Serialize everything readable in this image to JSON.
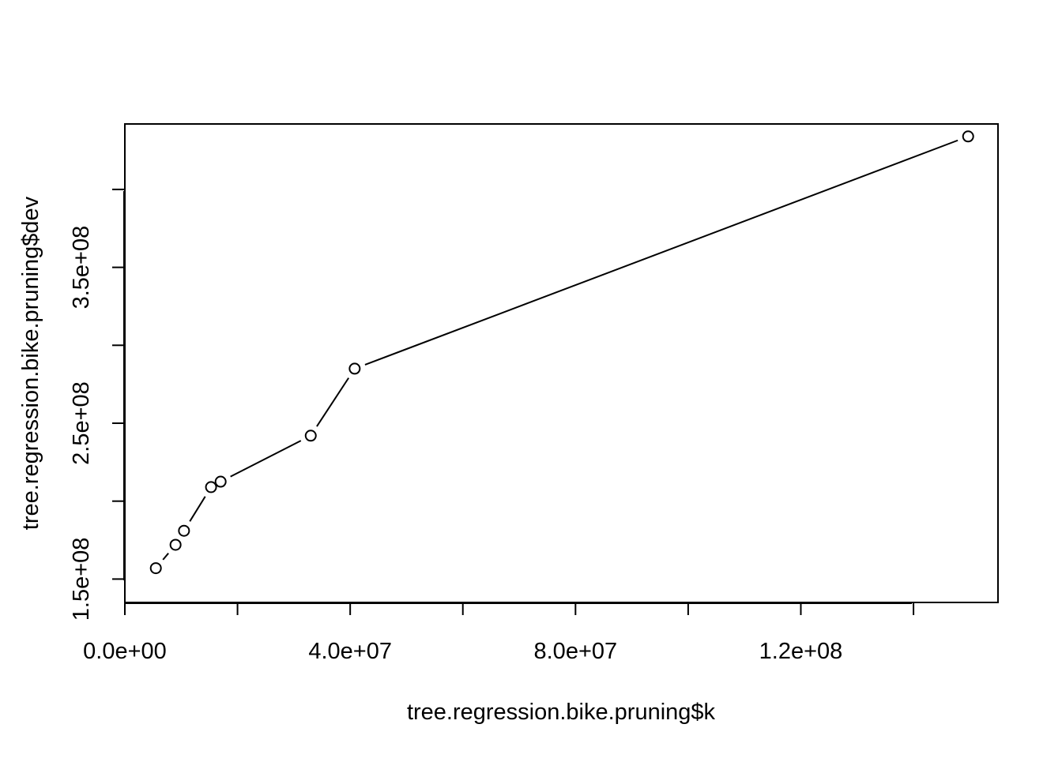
{
  "chart_data": {
    "type": "line",
    "title": "",
    "xlabel": "tree.regression.bike.pruning$k",
    "ylabel": "tree.regression.bike.pruning$dev",
    "xlim": [
      0,
      155000000
    ],
    "ylim": [
      135000000,
      442000000
    ],
    "x_ticks": [
      0,
      20000000,
      40000000,
      60000000,
      80000000,
      100000000,
      120000000,
      140000000
    ],
    "x_tick_labels": [
      "0.0e+00",
      "",
      "4.0e+07",
      "",
      "8.0e+07",
      "",
      "1.2e+08",
      ""
    ],
    "y_ticks": [
      150000000,
      200000000,
      250000000,
      300000000,
      350000000,
      400000000
    ],
    "y_tick_labels": [
      "1.5e+08",
      "",
      "2.5e+08",
      "",
      "3.5e+08",
      ""
    ],
    "grid": false,
    "marker": "open-circle",
    "series": [
      {
        "x": [
          5500000,
          9000000,
          10500000,
          15300000,
          17000000,
          33000000,
          40800000,
          149700000
        ],
        "values": [
          157000000,
          172000000,
          181000000,
          209000000,
          212500000,
          242000000,
          285000000,
          434000000
        ]
      }
    ]
  }
}
